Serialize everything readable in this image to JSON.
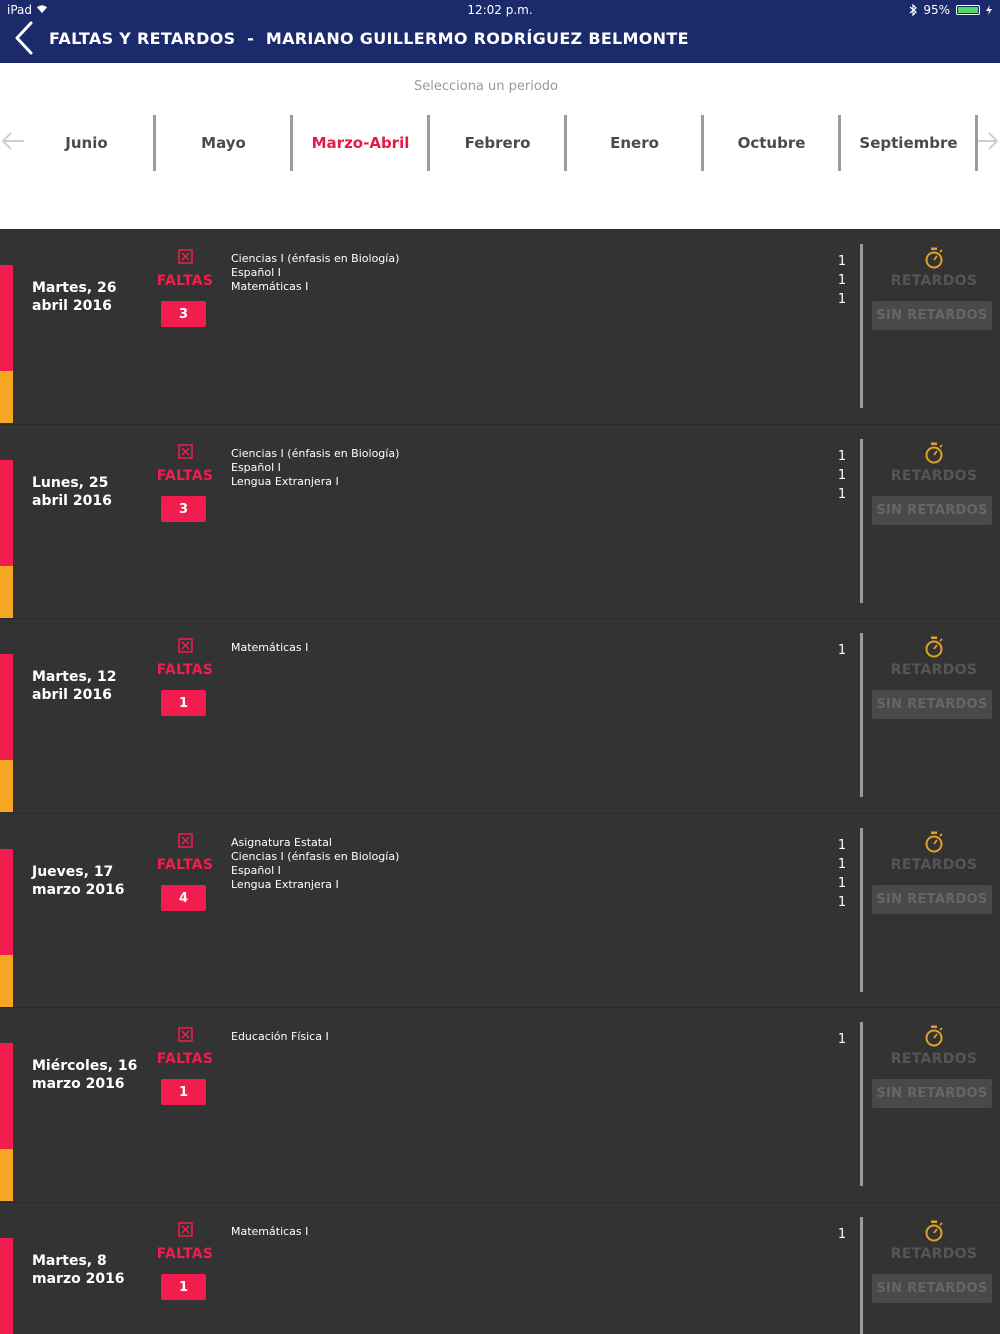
{
  "status_bar": {
    "device": "iPad",
    "time": "12:02 p.m.",
    "battery": "95%"
  },
  "header": {
    "title": "FALTAS Y RETARDOS  -  MARIANO GUILLERMO RODRÍGUEZ BELMONTE"
  },
  "period": {
    "label": "Selecciona un periodo",
    "months": [
      "Junio",
      "Mayo",
      "Marzo-Abril",
      "Febrero",
      "Enero",
      "Octubre",
      "Septiembre"
    ],
    "active": "Marzo-Abril"
  },
  "labels": {
    "faltas": "FALTAS",
    "retardos": "RETARDOS",
    "sin_retardos": "SIN RETARDOS"
  },
  "colors": {
    "header": "#1b2a6b",
    "accent": "#f21d4e",
    "orange": "#f5a623",
    "active_month": "#e8194a"
  },
  "records": [
    {
      "date": "Martes, 26 abril 2016",
      "total": "3",
      "subjects": [
        "Ciencias I (énfasis en Biología)",
        "Español I",
        "Matemáticas I"
      ],
      "counts": [
        "1",
        "1",
        "1"
      ]
    },
    {
      "date": "Lunes, 25 abril 2016",
      "total": "3",
      "subjects": [
        "Ciencias I (énfasis en Biología)",
        "Español I",
        "Lengua Extranjera I"
      ],
      "counts": [
        "1",
        "1",
        "1"
      ]
    },
    {
      "date": "Martes, 12 abril 2016",
      "total": "1",
      "subjects": [
        "Matemáticas I"
      ],
      "counts": [
        "1"
      ]
    },
    {
      "date": "Jueves, 17 marzo 2016",
      "total": "4",
      "subjects": [
        "Asignatura Estatal",
        "Ciencias I (énfasis en Biología)",
        "Español I",
        "Lengua Extranjera I"
      ],
      "counts": [
        "1",
        "1",
        "1",
        "1"
      ]
    },
    {
      "date": "Miércoles, 16 marzo 2016",
      "total": "1",
      "subjects": [
        "Educación Física I"
      ],
      "counts": [
        "1"
      ]
    },
    {
      "date": "Martes, 8 marzo 2016",
      "total": "1",
      "subjects": [
        "Matemáticas I"
      ],
      "counts": [
        "1"
      ]
    }
  ]
}
